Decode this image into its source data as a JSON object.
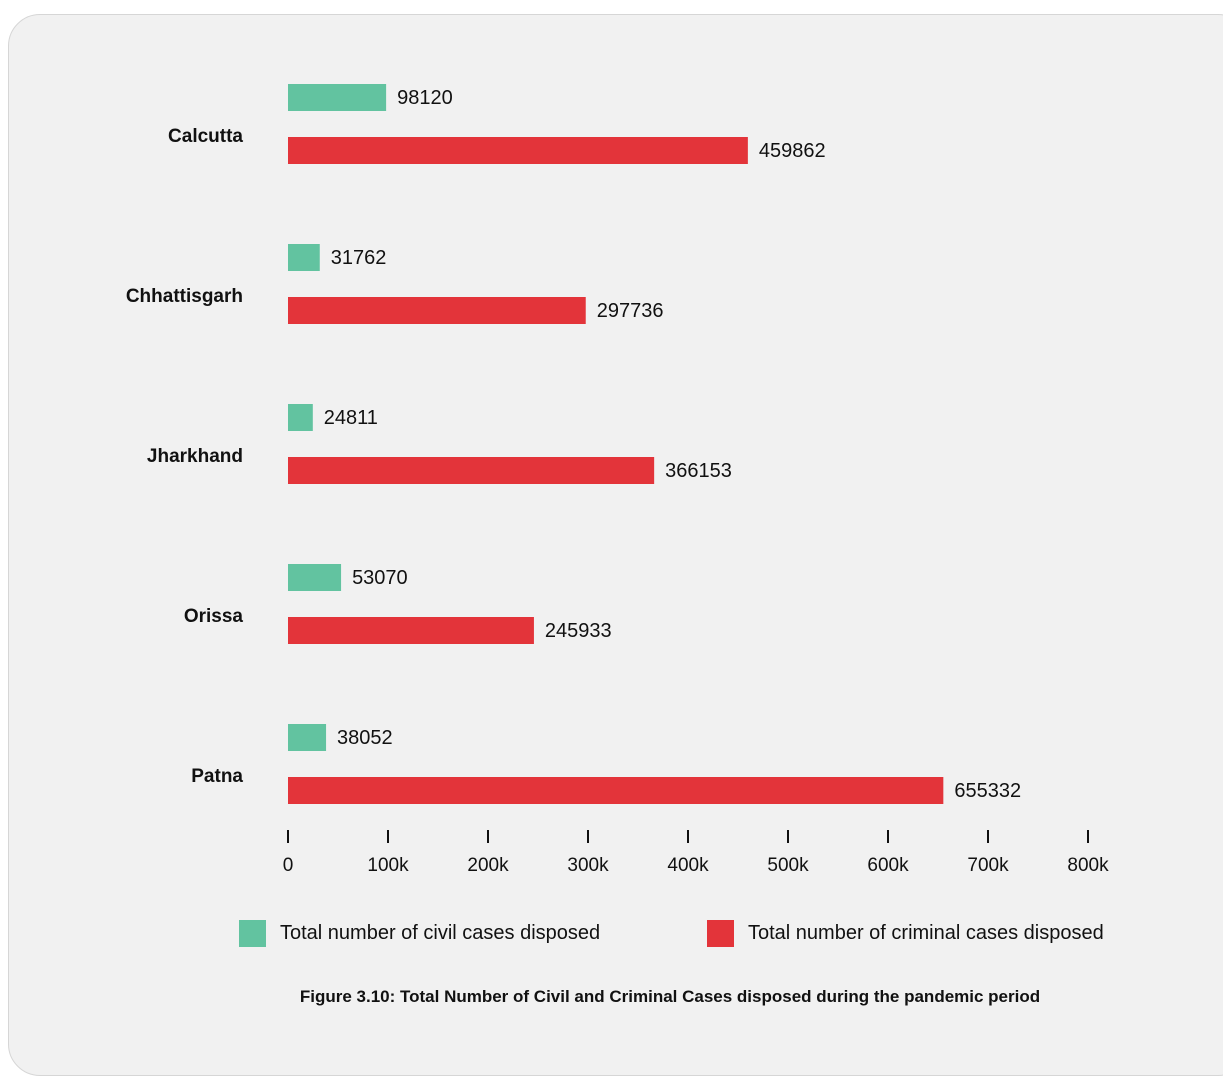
{
  "chart_data": {
    "type": "bar",
    "orientation": "horizontal",
    "categories": [
      "Calcutta",
      "Chhattisgarh",
      "Jharkhand",
      "Orissa",
      "Patna"
    ],
    "series": [
      {
        "name": "Total number of civil cases disposed",
        "color": "#62c3a0",
        "values": [
          98120,
          31762,
          24811,
          53070,
          38052
        ]
      },
      {
        "name": "Total number of criminal cases disposed",
        "color": "#e3343a",
        "values": [
          459862,
          297736,
          366153,
          245933,
          655332
        ]
      }
    ],
    "xlim": [
      0,
      800000
    ],
    "x_ticks": [
      0,
      100000,
      200000,
      300000,
      400000,
      500000,
      600000,
      700000,
      800000
    ],
    "x_tick_labels": [
      "0",
      "100k",
      "200k",
      "300k",
      "400k",
      "500k",
      "600k",
      "700k",
      "800k"
    ],
    "grid": false,
    "legend_position": "bottom",
    "data_labels": true
  },
  "caption": "Figure 3.10: Total Number of Civil and Criminal Cases disposed during the pandemic period"
}
